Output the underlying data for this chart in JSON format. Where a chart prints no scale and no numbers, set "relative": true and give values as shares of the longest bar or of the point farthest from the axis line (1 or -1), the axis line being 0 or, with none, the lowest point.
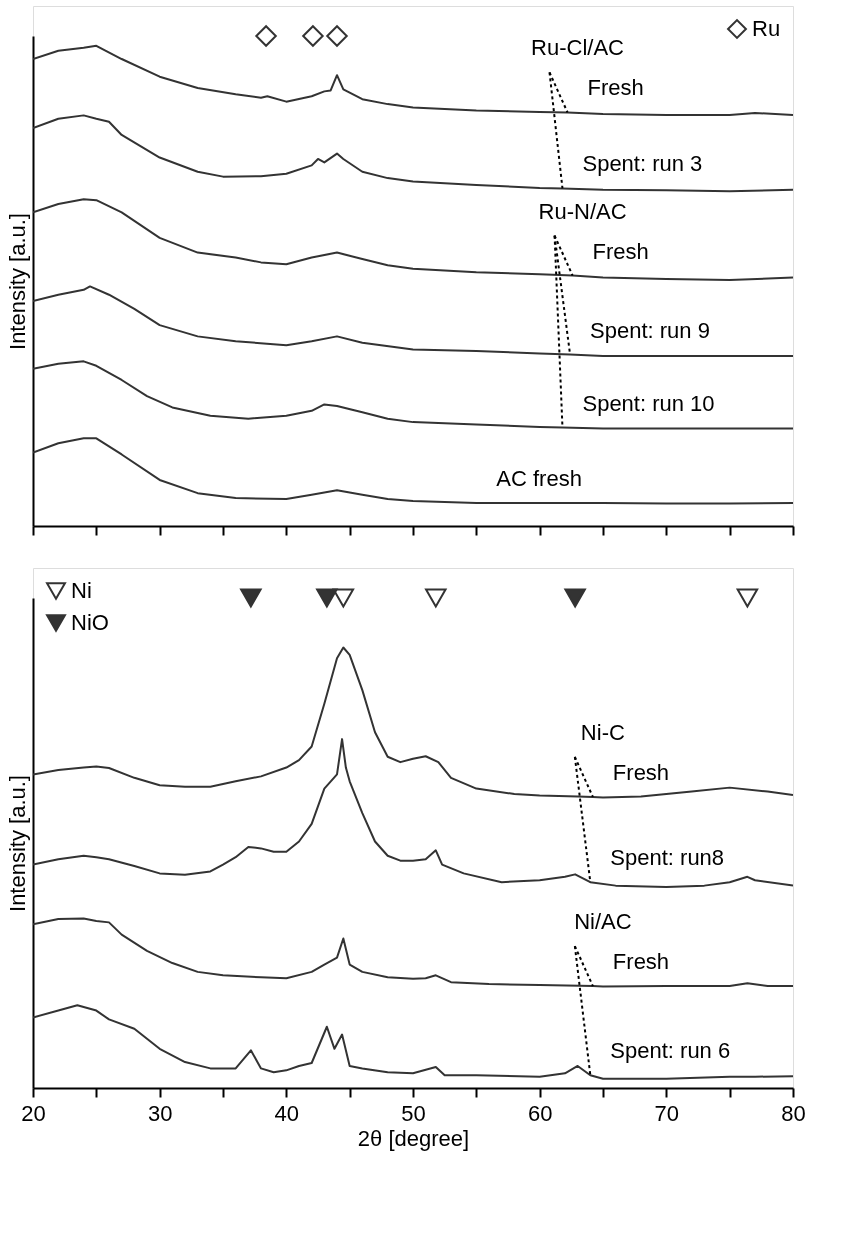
{
  "chart_data": [
    {
      "type": "line",
      "relative": true,
      "ylabel": "Intensity [a.u.]",
      "xlim": [
        20,
        80
      ],
      "xticks": [
        20,
        25,
        30,
        35,
        40,
        45,
        50,
        55,
        60,
        65,
        70,
        75,
        80
      ],
      "tick_labels": false,
      "legend": "top right",
      "series": [
        {
          "color": "#333333",
          "x": [
            20,
            22,
            24,
            25,
            27,
            30,
            33,
            36,
            38,
            38.5,
            40,
            42,
            43,
            43.5,
            44,
            44.5,
            46,
            48,
            50,
            55,
            60,
            62.2,
            65,
            70,
            75,
            77,
            80
          ],
          "values": [
            0.953,
            0.97,
            0.976,
            0.98,
            0.953,
            0.917,
            0.894,
            0.881,
            0.874,
            0.877,
            0.866,
            0.877,
            0.887,
            0.889,
            0.92,
            0.891,
            0.871,
            0.861,
            0.854,
            0.848,
            0.845,
            0.844,
            0.841,
            0.839,
            0.839,
            0.843,
            0.839
          ]
        },
        {
          "color": "#333333",
          "x": [
            20,
            22,
            24,
            25,
            26,
            27,
            30,
            33,
            35,
            38,
            40,
            42,
            42.5,
            43,
            44,
            44.5,
            46,
            48,
            50,
            55,
            60,
            61.8,
            65,
            70,
            75,
            80
          ],
          "values": [
            0.812,
            0.831,
            0.838,
            0.831,
            0.825,
            0.798,
            0.752,
            0.723,
            0.713,
            0.714,
            0.719,
            0.736,
            0.749,
            0.742,
            0.76,
            0.749,
            0.723,
            0.71,
            0.703,
            0.696,
            0.69,
            0.689,
            0.686,
            0.685,
            0.683,
            0.686
          ]
        },
        {
          "color": "#333333",
          "x": [
            20,
            22,
            24,
            25,
            27,
            30,
            33,
            36,
            38,
            40,
            42,
            44,
            46,
            48,
            50,
            55,
            60,
            62.6,
            65,
            70,
            75,
            80
          ],
          "values": [
            0.64,
            0.657,
            0.667,
            0.665,
            0.64,
            0.588,
            0.558,
            0.548,
            0.538,
            0.534,
            0.548,
            0.558,
            0.545,
            0.532,
            0.525,
            0.518,
            0.514,
            0.511,
            0.507,
            0.504,
            0.502,
            0.507
          ]
        },
        {
          "color": "#333333",
          "x": [
            20,
            22,
            24,
            24.5,
            26,
            28,
            30,
            33,
            36,
            40,
            42,
            44,
            46,
            50,
            55,
            60,
            62.4,
            65,
            70,
            75,
            80
          ],
          "values": [
            0.459,
            0.472,
            0.482,
            0.489,
            0.472,
            0.443,
            0.41,
            0.387,
            0.377,
            0.369,
            0.377,
            0.387,
            0.374,
            0.36,
            0.357,
            0.352,
            0.35,
            0.347,
            0.347,
            0.347,
            0.347
          ]
        },
        {
          "color": "#333333",
          "x": [
            20,
            22,
            24,
            25,
            27,
            29,
            31,
            34,
            37,
            40,
            42,
            43,
            44,
            46,
            48,
            50,
            55,
            60,
            61.8,
            65,
            70,
            75,
            80
          ],
          "values": [
            0.321,
            0.331,
            0.336,
            0.327,
            0.298,
            0.265,
            0.242,
            0.225,
            0.219,
            0.225,
            0.235,
            0.248,
            0.245,
            0.232,
            0.219,
            0.212,
            0.207,
            0.202,
            0.201,
            0.199,
            0.199,
            0.199,
            0.199
          ]
        },
        {
          "color": "#333333",
          "x": [
            20,
            22,
            24,
            25,
            27,
            30,
            33,
            36,
            40,
            42,
            44,
            46,
            48,
            50,
            55,
            60,
            65,
            70,
            75,
            80
          ],
          "values": [
            0.15,
            0.169,
            0.179,
            0.179,
            0.146,
            0.094,
            0.067,
            0.057,
            0.055,
            0.064,
            0.073,
            0.064,
            0.055,
            0.051,
            0.047,
            0.047,
            0.047,
            0.046,
            0.046,
            0.047
          ]
        },
        {
          "type": "scatter",
          "name": "Ru",
          "marker": "diamond",
          "color": "#ffffff",
          "x": [
            38.4,
            42.1,
            44.0
          ],
          "values": [
            1,
            1,
            1
          ]
        }
      ],
      "annotations": [
        {
          "text": "AC fresh",
          "x": 55,
          "y": 0.047
        },
        "Ru-Cl/AC",
        {
          "text": "Fresh",
          "x": 62.2,
          "y": 0.844
        },
        {
          "text": "Spent: run 3",
          "x": 61.8,
          "y": 0.689
        },
        "Ru-N/AC",
        {
          "text": "Fresh",
          "x": 62.6,
          "y": 0.511
        },
        {
          "text": "Spent: run 9",
          "x": 62.4,
          "y": 0.35
        },
        {
          "text": "Spent: run 10",
          "x": 61.8,
          "y": 0.201
        }
      ]
    },
    {
      "type": "line",
      "relative": true,
      "ylabel": "Intensity [a.u.]",
      "xlabel": "2θ [degree]",
      "xlim": [
        20,
        80
      ],
      "xticks": [
        20,
        {
          "value": 25,
          "label": null
        },
        30,
        {
          "value": 35,
          "label": null
        },
        40,
        {
          "value": 45,
          "label": null
        },
        50,
        {
          "value": 55,
          "label": null
        },
        60,
        {
          "value": 65,
          "label": null
        },
        70,
        {
          "value": 75,
          "label": null
        },
        80
      ],
      "tick_labels": "x",
      "legend": "top left",
      "series": [
        {
          "color": "#333333",
          "x": [
            20,
            22,
            24,
            25,
            26,
            28,
            30,
            32,
            34,
            36,
            38,
            40,
            41,
            42,
            43,
            44,
            44.5,
            45,
            46,
            47,
            48,
            49,
            50,
            51,
            52,
            53,
            55,
            58,
            60,
            63,
            64.2,
            65,
            68,
            70,
            72,
            75,
            78,
            80
          ],
          "values": [
            0.64,
            0.649,
            0.654,
            0.656,
            0.653,
            0.633,
            0.618,
            0.615,
            0.615,
            0.626,
            0.636,
            0.654,
            0.669,
            0.697,
            0.784,
            0.877,
            0.899,
            0.884,
            0.812,
            0.726,
            0.676,
            0.665,
            0.672,
            0.677,
            0.665,
            0.633,
            0.611,
            0.6,
            0.597,
            0.595,
            0.594,
            0.593,
            0.595,
            0.6,
            0.605,
            0.613,
            0.605,
            0.598
          ]
        },
        {
          "color": "#333333",
          "x": [
            20,
            22,
            24,
            25,
            26,
            28,
            30,
            32,
            34,
            35,
            36,
            37,
            38,
            39,
            40,
            41,
            42,
            43,
            44,
            44.4,
            44.7,
            45,
            46,
            47,
            48,
            49,
            50,
            51,
            51.8,
            52.3,
            54,
            57,
            60,
            62,
            62.8,
            64,
            66,
            70,
            73,
            75,
            76.4,
            77,
            80
          ],
          "values": [
            0.456,
            0.467,
            0.474,
            0.471,
            0.467,
            0.453,
            0.438,
            0.435,
            0.442,
            0.456,
            0.471,
            0.492,
            0.489,
            0.482,
            0.482,
            0.503,
            0.539,
            0.611,
            0.64,
            0.712,
            0.654,
            0.626,
            0.561,
            0.503,
            0.474,
            0.464,
            0.464,
            0.467,
            0.485,
            0.456,
            0.438,
            0.42,
            0.424,
            0.431,
            0.436,
            0.42,
            0.413,
            0.41,
            0.413,
            0.42,
            0.431,
            0.424,
            0.413
          ]
        },
        {
          "color": "#333333",
          "x": [
            20,
            22,
            24,
            25,
            26,
            27,
            29,
            31,
            33,
            35,
            38,
            40,
            42,
            43,
            44,
            44.5,
            45,
            46,
            48,
            50,
            51,
            51.8,
            53,
            56,
            60,
            64.2,
            65,
            70,
            75,
            76.4,
            78,
            80
          ],
          "values": [
            0.334,
            0.345,
            0.346,
            0.341,
            0.338,
            0.313,
            0.28,
            0.255,
            0.237,
            0.23,
            0.226,
            0.224,
            0.237,
            0.252,
            0.266,
            0.305,
            0.252,
            0.237,
            0.226,
            0.223,
            0.224,
            0.23,
            0.216,
            0.212,
            0.21,
            0.208,
            0.207,
            0.208,
            0.208,
            0.214,
            0.208,
            0.208
          ]
        },
        {
          "color": "#333333",
          "x": [
            20,
            22,
            23.5,
            25,
            26,
            28,
            30,
            32,
            34,
            36,
            37.2,
            38,
            39,
            40,
            41,
            42,
            43.2,
            43.8,
            44.4,
            45,
            46,
            48,
            50,
            51.8,
            52.5,
            55,
            60,
            62,
            63,
            64,
            65,
            70,
            75,
            77,
            80
          ],
          "values": [
            0.144,
            0.158,
            0.169,
            0.158,
            0.14,
            0.121,
            0.08,
            0.053,
            0.04,
            0.04,
            0.077,
            0.04,
            0.032,
            0.036,
            0.045,
            0.051,
            0.125,
            0.08,
            0.109,
            0.045,
            0.04,
            0.032,
            0.03,
            0.043,
            0.026,
            0.026,
            0.023,
            0.03,
            0.045,
            0.026,
            0.019,
            0.019,
            0.023,
            0.023,
            0.024
          ]
        },
        {
          "type": "scatter",
          "name": "Ni",
          "marker": "triangle",
          "color": "#ffffff",
          "x": [
            44.5,
            51.8,
            76.4
          ],
          "values": [
            1,
            1,
            1
          ]
        },
        {
          "type": "scatter",
          "name": "NiO",
          "marker": "triangle",
          "color": "#333333",
          "x": [
            37.2,
            43.2,
            62.8
          ],
          "values": [
            1,
            1,
            1
          ]
        }
      ],
      "annotations": [
        "Ni-C",
        {
          "text": "Fresh",
          "x": 64.2,
          "y": 0.594
        },
        {
          "text": "Spent: run8",
          "x": 64,
          "y": 0.42
        },
        "Ni/AC",
        {
          "text": "Fresh",
          "x": 64.2,
          "y": 0.208
        },
        {
          "text": "Spent: run 6",
          "x": 64,
          "y": 0.026
        }
      ]
    }
  ]
}
